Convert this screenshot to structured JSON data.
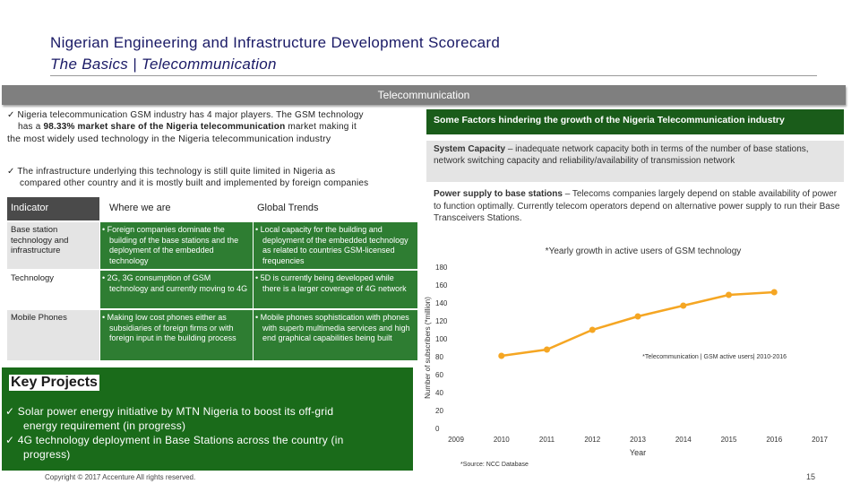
{
  "header": {
    "title": "Nigerian Engineering and Infrastructure Development Scorecard",
    "subtitle": "The Basics | Telecommunication"
  },
  "section_bar": "Telecommunication",
  "intro": {
    "line1": "✓ Nigeria telecommunication GSM industry has 4 major players. The GSM technology",
    "line2_pre": "has a ",
    "line2_bold": "98.33% market share of the Nigeria telecommunication",
    "line2_post": " market making it",
    "line3": "the most widely used technology in the Nigeria telecommunication industry",
    "line4": "✓ The infrastructure underlying this technology is still quite limited in Nigeria as",
    "line5": "compared other country and it is mostly built and implemented by foreign companies"
  },
  "table": {
    "headers": [
      "Indicator",
      "Where we are",
      "Global Trends"
    ],
    "rows": [
      {
        "indicator": "Base station technology and infrastructure",
        "where": "• Foreign companies dominate the building of the base stations and the deployment of the embedded technology",
        "trend": "• Local capacity for the building and deployment of the embedded technology as related to countries GSM-licensed frequencies"
      },
      {
        "indicator": "Technology",
        "where": "• 2G, 3G consumption of GSM technology and currently moving to 4G",
        "trend": "• 5D is currently being developed while there is a larger coverage of 4G network"
      },
      {
        "indicator": "Mobile Phones",
        "where": "• Making low cost phones either as subsidiaries of foreign firms or with foreign input in the building process",
        "trend": "• Mobile phones sophistication with phones with superb multimedia services and high end graphical capabilities being built"
      }
    ]
  },
  "key_projects": {
    "title": "Key Projects",
    "items": [
      "✓ Solar power energy initiative by MTN Nigeria to boost its off-grid",
      "energy requirement (in progress)",
      "✓ 4G technology deployment in Base Stations across the country (in",
      "progress)"
    ]
  },
  "factors": {
    "header": "Some Factors hindering the growth of the Nigeria Telecommunication industry",
    "f1_bold": "System Capacity",
    "f1_text": " – inadequate network capacity both in terms of the number of base stations, network switching capacity and reliability/availability of transmission network",
    "f2_bold": "Power supply to base stations",
    "f2_text": " – Telecoms companies largely depend on stable availability of power to function optimally. Currently telecom operators depend on alternative power supply to run their Base Transceivers Stations."
  },
  "footer": {
    "copyright": "Copyright © 2017 Accenture All rights reserved.",
    "page": "15"
  },
  "chart_data": {
    "type": "line",
    "title": "*Yearly growth in active users of GSM technology",
    "xlabel": "Year",
    "ylabel": "Number of subscribers (*million)",
    "categories": [
      "2009",
      "2010",
      "2011",
      "2012",
      "2013",
      "2014",
      "2015",
      "2016",
      "2017"
    ],
    "series": [
      {
        "name": "*Telecommunication | GSM active users| 2010-2016",
        "x": [
          "2010",
          "2011",
          "2012",
          "2013",
          "2014",
          "2015",
          "2016"
        ],
        "values": [
          81,
          88,
          110,
          125,
          137,
          149,
          152
        ]
      }
    ],
    "yticks": [
      0,
      20,
      40,
      60,
      80,
      100,
      120,
      140,
      160,
      180
    ],
    "ylim": [
      0,
      180
    ],
    "source": "*Source: NCC Database",
    "color": "#f5a623"
  }
}
